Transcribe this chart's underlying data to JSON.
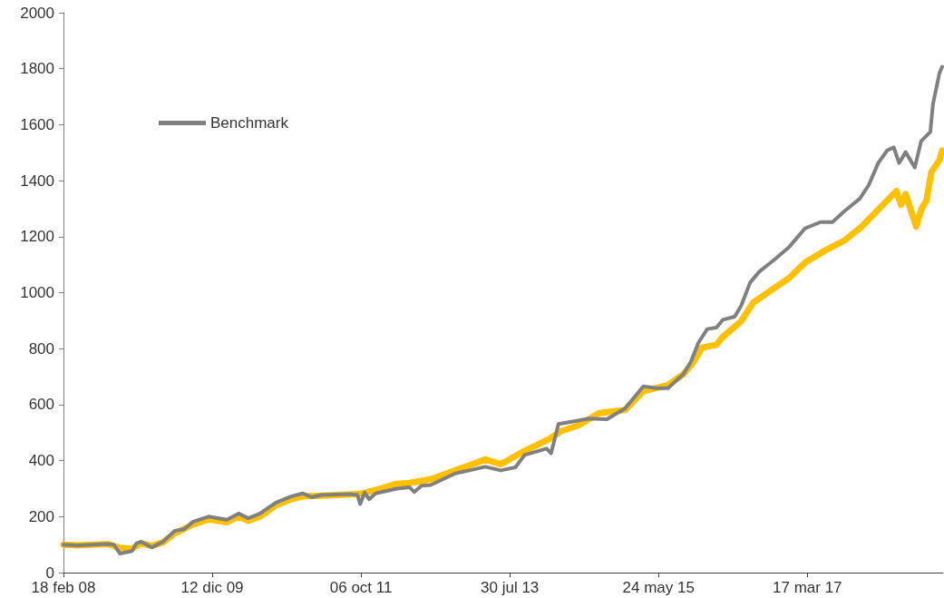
{
  "chart_data": {
    "type": "line",
    "xlim": [
      "2008-02-18",
      "2018-11-12"
    ],
    "xticks": [
      {
        "value": "2008-02-18",
        "label": "18 feb 08"
      },
      {
        "value": "2009-12-12",
        "label": "12 dic 09"
      },
      {
        "value": "2011-10-06",
        "label": "06 oct 11"
      },
      {
        "value": "2013-07-30",
        "label": "30 jul 13"
      },
      {
        "value": "2015-05-24",
        "label": "24 may 15"
      },
      {
        "value": "2017-03-17",
        "label": "17 mar 17"
      }
    ],
    "ylim": [
      0,
      2000
    ],
    "yticks": [
      0,
      200,
      400,
      600,
      800,
      1000,
      1200,
      1400,
      1600,
      1800,
      2000
    ],
    "grid": false,
    "legend": "top",
    "marker": "none",
    "line_style": "solid",
    "series": [
      {
        "color": "#ffc000",
        "x": [
          "2008-02-18",
          "2008-04-19",
          "2008-09-04",
          "2008-10-27",
          "2008-12-19",
          "2009-01-29",
          "2009-03-18",
          "2009-05-06",
          "2009-06-28",
          "2009-09-18",
          "2009-11-26",
          "2010-02-15",
          "2010-04-10",
          "2010-05-21",
          "2010-07-13",
          "2010-09-20",
          "2010-11-28",
          "2011-01-19",
          "2011-04-11",
          "2011-09-20",
          "2011-10-22",
          "2011-12-10",
          "2012-03-13",
          "2012-05-09",
          "2012-08-11",
          "2012-11-29",
          "2013-04-12",
          "2013-06-20",
          "2013-10-04",
          "2014-01-20",
          "2014-03-12",
          "2014-06-01",
          "2014-09-01",
          "2014-12-26",
          "2015-03-17",
          "2015-07-05",
          "2015-09-12",
          "2015-10-27",
          "2015-12-03",
          "2016-02-06",
          "2016-03-05",
          "2016-05-26",
          "2016-07-18",
          "2016-10-05",
          "2016-12-27",
          "2017-03-07",
          "2017-06-09",
          "2017-08-29",
          "2017-11-14",
          "2018-01-27",
          "2018-04-18",
          "2018-05-08",
          "2018-05-29",
          "2018-06-29",
          "2018-07-15",
          "2018-08-06",
          "2018-08-30",
          "2018-09-20",
          "2018-10-27",
          "2018-11-08"
        ],
        "values": [
          100,
          97,
          102,
          88,
          85,
          105,
          95,
          108,
          140,
          172,
          190,
          180,
          200,
          185,
          200,
          240,
          262,
          272,
          275,
          280,
          285,
          295,
          317,
          320,
          333,
          365,
          404,
          387,
          435,
          476,
          504,
          526,
          570,
          581,
          648,
          670,
          709,
          753,
          803,
          814,
          842,
          898,
          964,
          1008,
          1053,
          1108,
          1153,
          1186,
          1236,
          1297,
          1363,
          1314,
          1352,
          1275,
          1236,
          1297,
          1330,
          1430,
          1474,
          1508
        ]
      },
      {
        "name": "Benchmark",
        "color": "#808080",
        "x": [
          "2008-02-18",
          "2008-04-19",
          "2008-09-04",
          "2008-09-29",
          "2008-10-27",
          "2008-12-19",
          "2009-01-09",
          "2009-01-29",
          "2009-03-18",
          "2009-05-06",
          "2009-06-28",
          "2009-08-08",
          "2009-09-18",
          "2009-11-26",
          "2010-02-15",
          "2010-04-10",
          "2010-05-21",
          "2010-07-13",
          "2010-09-20",
          "2010-11-28",
          "2011-01-19",
          "2011-03-01",
          "2011-04-11",
          "2011-08-23",
          "2011-09-20",
          "2011-10-02",
          "2011-10-22",
          "2011-11-11",
          "2011-12-10",
          "2012-03-13",
          "2012-05-09",
          "2012-05-30",
          "2012-07-01",
          "2012-08-11",
          "2012-11-29",
          "2013-04-12",
          "2013-06-20",
          "2013-08-24",
          "2013-10-04",
          "2014-01-10",
          "2014-01-30",
          "2014-03-04",
          "2014-05-25",
          "2014-07-17",
          "2014-10-06",
          "2014-12-26",
          "2015-03-17",
          "2015-05-13",
          "2015-07-05",
          "2015-09-12",
          "2015-10-15",
          "2015-11-17",
          "2015-12-27",
          "2016-02-06",
          "2016-03-05",
          "2016-04-27",
          "2016-05-26",
          "2016-07-05",
          "2016-08-15",
          "2016-10-23",
          "2016-12-27",
          "2017-03-07",
          "2017-05-15",
          "2017-07-07",
          "2017-08-29",
          "2017-11-06",
          "2017-12-16",
          "2018-01-27",
          "2018-03-08",
          "2018-04-06",
          "2018-04-30",
          "2018-05-29",
          "2018-07-09",
          "2018-08-06",
          "2018-09-16",
          "2018-09-28",
          "2018-10-27",
          "2018-11-08"
        ],
        "values": [
          100,
          97,
          102,
          100,
          68,
          77,
          105,
          110,
          90,
          110,
          149,
          155,
          182,
          200,
          189,
          211,
          194,
          211,
          249,
          272,
          283,
          269,
          277,
          280,
          277,
          245,
          286,
          262,
          283,
          300,
          305,
          288,
          310,
          313,
          354,
          378,
          365,
          376,
          420,
          443,
          426,
          531,
          542,
          550,
          548,
          587,
          665,
          659,
          659,
          709,
          753,
          820,
          870,
          875,
          903,
          914,
          953,
          1036,
          1075,
          1119,
          1164,
          1230,
          1252,
          1252,
          1291,
          1336,
          1385,
          1463,
          1508,
          1519,
          1463,
          1502,
          1447,
          1541,
          1574,
          1674,
          1785,
          1807
        ]
      }
    ]
  }
}
